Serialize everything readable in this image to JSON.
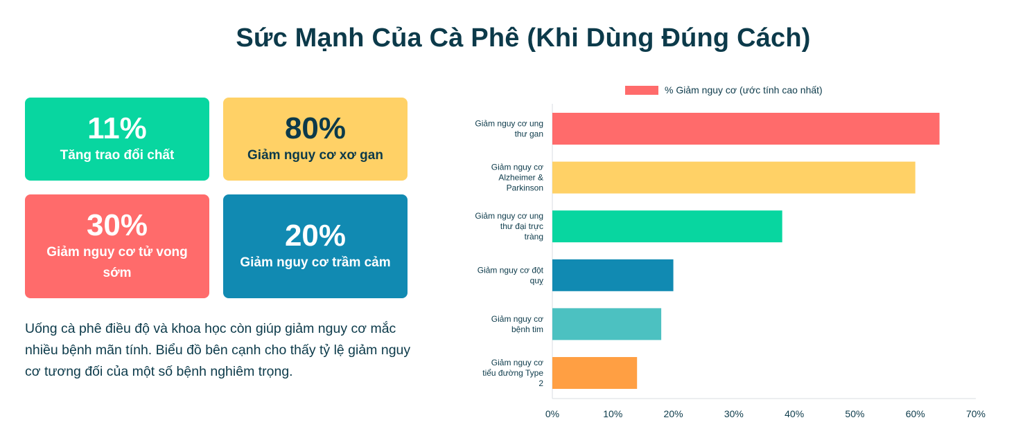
{
  "title": "Sức Mạnh Của Cà Phê (Khi Dùng Đúng Cách)",
  "stats": [
    {
      "value": "11%",
      "label": "Tăng trao đổi chất",
      "color": "#08d6a0"
    },
    {
      "value": "80%",
      "label": "Giảm nguy cơ xơ gan",
      "color": "#ffd166"
    },
    {
      "value": "30%",
      "label": "Giảm nguy cơ tử vong sớm",
      "color": "#ff6b6b"
    },
    {
      "value": "20%",
      "label": "Giảm nguy cơ trầm cảm",
      "color": "#118ab2"
    }
  ],
  "description": "Uống cà phê điều độ và khoa học còn giúp giảm nguy cơ mắc nhiều bệnh mãn tính. Biểu đồ bên cạnh cho thấy tỷ lệ giảm nguy cơ tương đối của một số bệnh nghiêm trọng.",
  "chart_data": {
    "type": "bar",
    "orientation": "horizontal",
    "categories": [
      [
        "Giảm nguy cơ ung",
        "thư gan"
      ],
      [
        "Giảm nguy cơ",
        "Alzheimer &",
        "Parkinson"
      ],
      [
        "Giảm nguy cơ ung",
        "thư đại trực",
        "tràng"
      ],
      [
        "Giảm nguy cơ đột",
        "quỵ"
      ],
      [
        "Giảm nguy cơ",
        "bệnh tim"
      ],
      [
        "Giảm nguy cơ",
        "tiểu đường Type",
        "2"
      ]
    ],
    "series": [
      {
        "name": "% Giảm nguy cơ (ước tính cao nhất)",
        "values": [
          64,
          60,
          38,
          20,
          18,
          14
        ]
      }
    ],
    "bar_colors": [
      "#ff6b6b",
      "#ffd166",
      "#08d6a0",
      "#118ab2",
      "#4cc1c1",
      "#ff9f43"
    ],
    "legend_color": "#ff6b6b",
    "xlim": [
      0,
      70
    ],
    "xticks": [
      "0%",
      "10%",
      "20%",
      "30%",
      "40%",
      "50%",
      "60%",
      "70%"
    ],
    "legend_position": "top",
    "grid": false
  }
}
